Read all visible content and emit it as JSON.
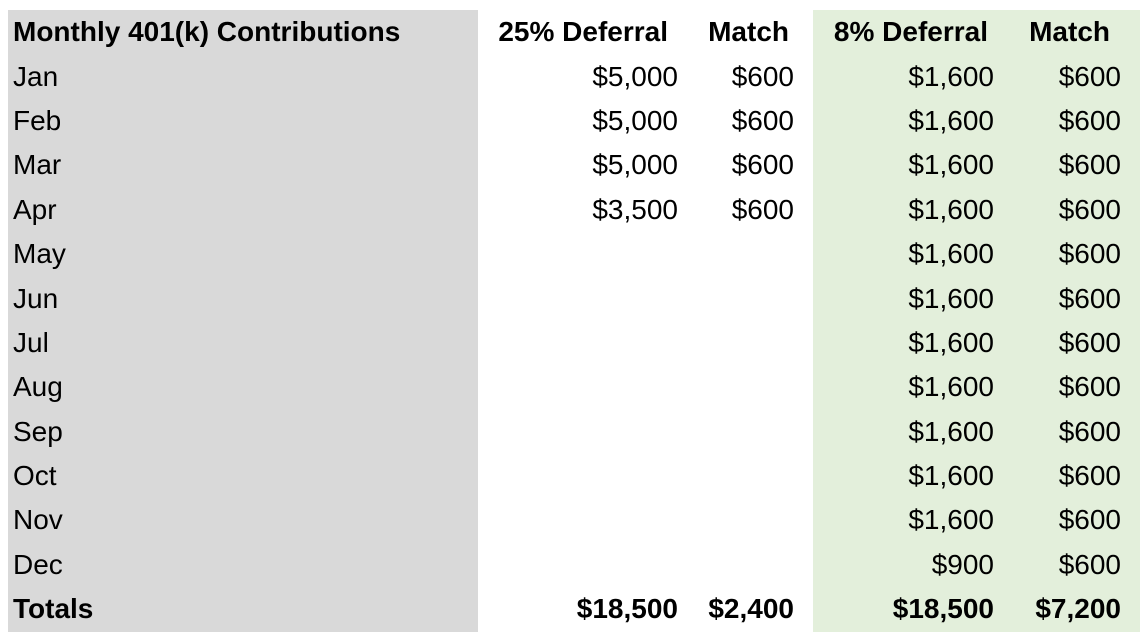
{
  "table": {
    "headers": {
      "month": "Monthly 401(k) Contributions",
      "deferral_25": "25% Deferral",
      "match_25": "Match",
      "deferral_8": "8% Deferral",
      "match_8": "Match"
    },
    "rows": [
      {
        "month": "Jan",
        "deferral_25": "$5,000",
        "match_25": "$600",
        "deferral_8": "$1,600",
        "match_8": "$600"
      },
      {
        "month": "Feb",
        "deferral_25": "$5,000",
        "match_25": "$600",
        "deferral_8": "$1,600",
        "match_8": "$600"
      },
      {
        "month": "Mar",
        "deferral_25": "$5,000",
        "match_25": "$600",
        "deferral_8": "$1,600",
        "match_8": "$600"
      },
      {
        "month": "Apr",
        "deferral_25": "$3,500",
        "match_25": "$600",
        "deferral_8": "$1,600",
        "match_8": "$600"
      },
      {
        "month": "May",
        "deferral_25": "",
        "match_25": "",
        "deferral_8": "$1,600",
        "match_8": "$600"
      },
      {
        "month": "Jun",
        "deferral_25": "",
        "match_25": "",
        "deferral_8": "$1,600",
        "match_8": "$600"
      },
      {
        "month": "Jul",
        "deferral_25": "",
        "match_25": "",
        "deferral_8": "$1,600",
        "match_8": "$600"
      },
      {
        "month": "Aug",
        "deferral_25": "",
        "match_25": "",
        "deferral_8": "$1,600",
        "match_8": "$600"
      },
      {
        "month": "Sep",
        "deferral_25": "",
        "match_25": "",
        "deferral_8": "$1,600",
        "match_8": "$600"
      },
      {
        "month": "Oct",
        "deferral_25": "",
        "match_25": "",
        "deferral_8": "$1,600",
        "match_8": "$600"
      },
      {
        "month": "Nov",
        "deferral_25": "",
        "match_25": "",
        "deferral_8": "$1,600",
        "match_8": "$600"
      },
      {
        "month": "Dec",
        "deferral_25": "",
        "match_25": "",
        "deferral_8": "$900",
        "match_8": "$600"
      }
    ],
    "totals": {
      "label": "Totals",
      "deferral_25": "$18,500",
      "match_25": "$2,400",
      "deferral_8": "$18,500",
      "match_8": "$7,200"
    }
  },
  "colors": {
    "month_column_bg": "#d9d9d9",
    "eight_percent_bg": "#e3efdb",
    "text": "#000000"
  }
}
